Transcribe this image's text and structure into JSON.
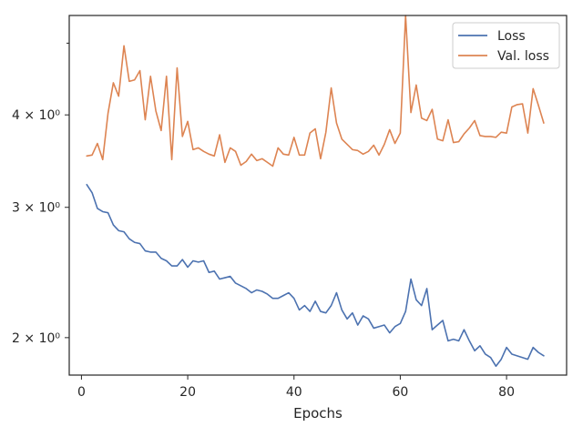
{
  "chart_data": {
    "type": "line",
    "title": "",
    "xlabel": "Epochs",
    "ylabel": "",
    "xlim": [
      -2.3,
      91.3
    ],
    "ylim": [
      1.78,
      5.45
    ],
    "yscale": "log",
    "grid": false,
    "legend_position": "top-right",
    "x_ticks": [
      0,
      20,
      40,
      60,
      80
    ],
    "x_tick_labels": [
      "0",
      "20",
      "40",
      "60",
      "80"
    ],
    "y_ticks": [
      2,
      3,
      4
    ],
    "y_tick_labels": [
      "2 × 10⁰",
      "3 × 10⁰",
      "4 × 10⁰"
    ],
    "y_minor_ticks": [
      5
    ],
    "series": [
      {
        "name": "Loss",
        "color": "#4c72b0",
        "x": [
          1,
          2,
          3,
          4,
          5,
          6,
          7,
          8,
          9,
          10,
          11,
          12,
          13,
          14,
          15,
          16,
          17,
          18,
          19,
          20,
          21,
          22,
          23,
          24,
          25,
          26,
          27,
          28,
          29,
          30,
          31,
          32,
          33,
          34,
          35,
          36,
          37,
          38,
          39,
          40,
          41,
          42,
          43,
          44,
          45,
          46,
          47,
          48,
          49,
          50,
          51,
          52,
          53,
          54,
          55,
          56,
          57,
          58,
          59,
          60,
          61,
          62,
          63,
          64,
          65,
          66,
          67,
          68,
          69,
          70,
          71,
          72,
          73,
          74,
          75,
          76,
          77,
          78,
          79,
          80,
          81,
          82,
          83,
          84,
          85,
          86,
          87
        ],
        "values": [
          3.22,
          3.14,
          2.99,
          2.96,
          2.95,
          2.84,
          2.79,
          2.78,
          2.72,
          2.69,
          2.68,
          2.62,
          2.61,
          2.61,
          2.56,
          2.54,
          2.5,
          2.5,
          2.55,
          2.49,
          2.54,
          2.53,
          2.54,
          2.45,
          2.46,
          2.4,
          2.41,
          2.42,
          2.37,
          2.35,
          2.33,
          2.3,
          2.32,
          2.31,
          2.29,
          2.26,
          2.26,
          2.28,
          2.3,
          2.26,
          2.18,
          2.21,
          2.17,
          2.24,
          2.17,
          2.16,
          2.21,
          2.3,
          2.18,
          2.12,
          2.16,
          2.08,
          2.14,
          2.12,
          2.06,
          2.07,
          2.08,
          2.03,
          2.07,
          2.09,
          2.17,
          2.4,
          2.25,
          2.21,
          2.33,
          2.05,
          2.08,
          2.11,
          1.98,
          1.99,
          1.98,
          2.05,
          1.98,
          1.92,
          1.95,
          1.9,
          1.88,
          1.83,
          1.87,
          1.94,
          1.9,
          1.89,
          1.88,
          1.87,
          1.94,
          1.91,
          1.89
        ]
      },
      {
        "name": "Val. loss",
        "color": "#dd8452",
        "x": [
          1,
          2,
          3,
          4,
          5,
          6,
          7,
          8,
          9,
          10,
          11,
          12,
          13,
          14,
          15,
          16,
          17,
          18,
          19,
          20,
          21,
          22,
          23,
          24,
          25,
          26,
          27,
          28,
          29,
          30,
          31,
          32,
          33,
          34,
          35,
          36,
          37,
          38,
          39,
          40,
          41,
          42,
          43,
          44,
          45,
          46,
          47,
          48,
          49,
          50,
          51,
          52,
          53,
          54,
          55,
          56,
          57,
          58,
          59,
          60,
          61,
          62,
          63,
          64,
          65,
          66,
          67,
          68,
          69,
          70,
          71,
          72,
          73,
          74,
          75,
          76,
          77,
          78,
          79,
          80,
          81,
          82,
          83,
          84,
          85,
          86,
          87
        ],
        "values": [
          3.52,
          3.53,
          3.66,
          3.48,
          4.02,
          4.42,
          4.24,
          4.96,
          4.44,
          4.46,
          4.59,
          3.94,
          4.51,
          4.05,
          3.81,
          4.51,
          3.48,
          4.63,
          3.74,
          3.92,
          3.59,
          3.61,
          3.57,
          3.54,
          3.52,
          3.76,
          3.45,
          3.61,
          3.57,
          3.42,
          3.46,
          3.54,
          3.47,
          3.49,
          3.45,
          3.41,
          3.61,
          3.54,
          3.53,
          3.73,
          3.53,
          3.53,
          3.78,
          3.83,
          3.49,
          3.79,
          4.35,
          3.9,
          3.71,
          3.65,
          3.59,
          3.58,
          3.54,
          3.57,
          3.64,
          3.53,
          3.65,
          3.82,
          3.66,
          3.78,
          5.45,
          4.03,
          4.39,
          3.96,
          3.93,
          4.07,
          3.71,
          3.69,
          3.94,
          3.67,
          3.68,
          3.77,
          3.84,
          3.93,
          3.75,
          3.74,
          3.74,
          3.73,
          3.79,
          3.78,
          4.1,
          4.13,
          4.14,
          3.78,
          4.34,
          4.12,
          3.9
        ]
      }
    ]
  }
}
